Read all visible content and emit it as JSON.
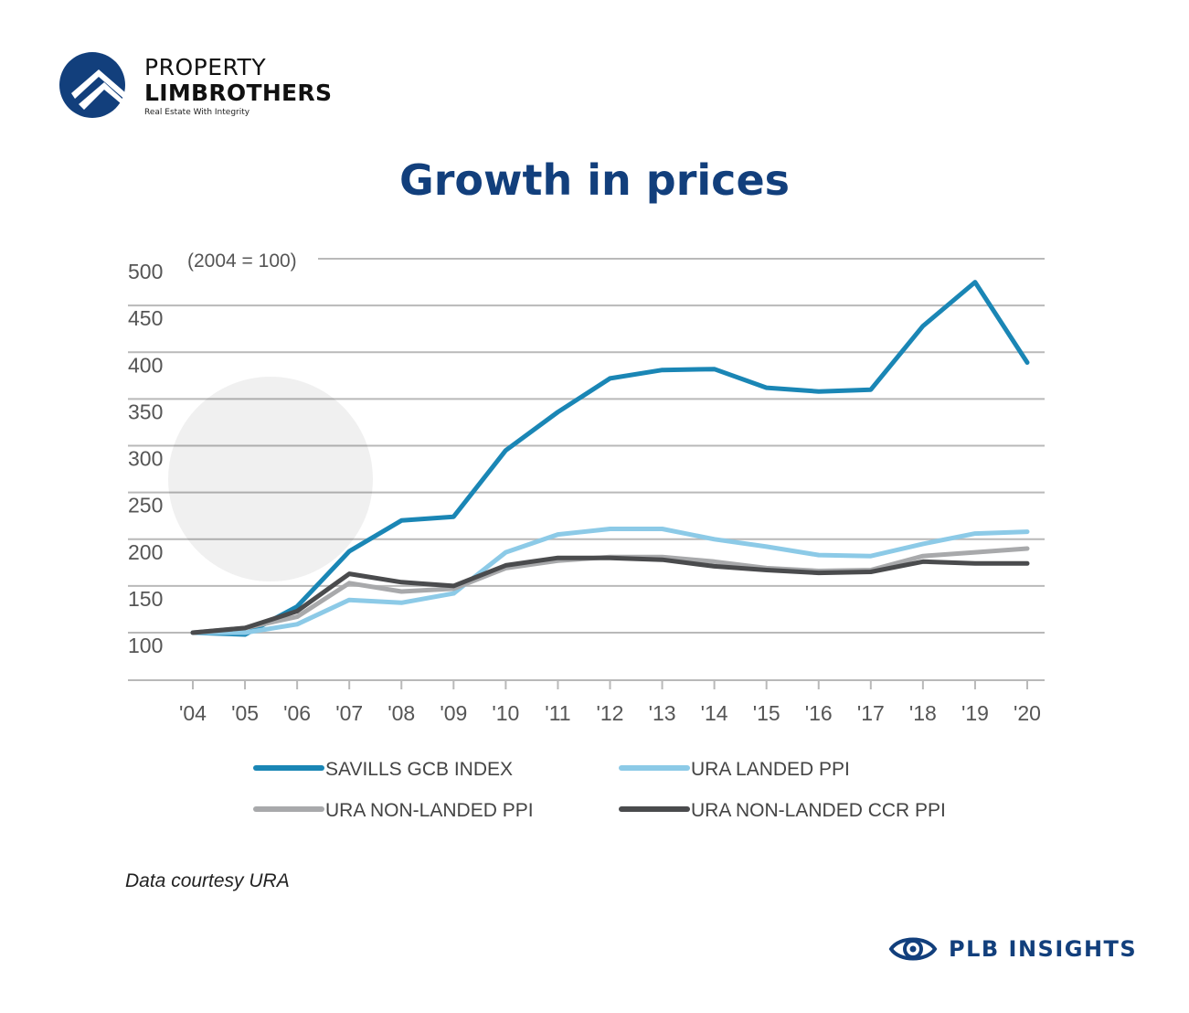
{
  "brand": {
    "line1": "PROPERTY",
    "line2": "LIMBROTHERS",
    "tagline": "Real Estate With Integrity",
    "color": "#123f7c"
  },
  "title": "Growth in prices",
  "caption": "Data courtesy URA",
  "footer": {
    "label": "PLB INSIGHTS",
    "icon": "eye-icon"
  },
  "chart_data": {
    "type": "line",
    "title": "Growth in prices",
    "annotation": "(2004 = 100)",
    "x": [
      "'04",
      "'05",
      "'06",
      "'07",
      "'08",
      "'09",
      "'10",
      "'11",
      "'12",
      "'13",
      "'14",
      "'15",
      "'16",
      "'17",
      "'18",
      "'19",
      "'20"
    ],
    "y_ticks": [
      100,
      150,
      200,
      250,
      300,
      350,
      400,
      450,
      500
    ],
    "ylim": [
      50,
      500
    ],
    "grid": true,
    "legend_position": "bottom",
    "series": [
      {
        "name": "SAVILLS GCB INDEX",
        "color": "#1a86b5",
        "values": [
          100,
          98,
          128,
          187,
          220,
          224,
          295,
          336,
          372,
          381,
          382,
          362,
          358,
          360,
          428,
          475,
          389
        ]
      },
      {
        "name": "URA LANDED PPI",
        "color": "#8ccae7",
        "values": [
          100,
          100,
          109,
          135,
          132,
          142,
          186,
          205,
          211,
          211,
          200,
          192,
          183,
          182,
          195,
          206,
          208
        ]
      },
      {
        "name": "URA NON-LANDED PPI",
        "color": "#a8a9ab",
        "values": [
          100,
          105,
          117,
          153,
          144,
          147,
          169,
          177,
          181,
          181,
          176,
          169,
          166,
          167,
          182,
          186,
          190
        ]
      },
      {
        "name": "URA NON-LANDED CCR PPI",
        "color": "#4a4b4d",
        "values": [
          100,
          105,
          123,
          163,
          154,
          150,
          172,
          180,
          180,
          178,
          171,
          167,
          164,
          165,
          176,
          174,
          174
        ]
      }
    ]
  }
}
